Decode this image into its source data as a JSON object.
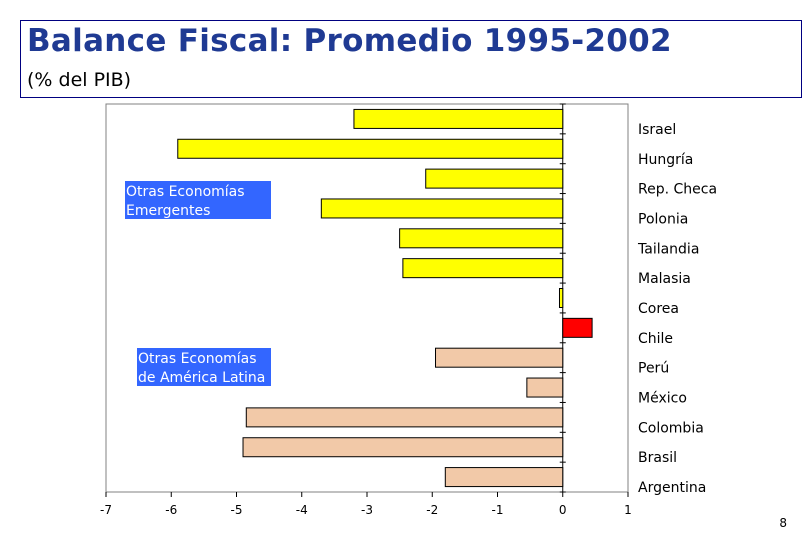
{
  "header": {
    "title": "Balance Fiscal: Promedio 1995-2002",
    "subtitle": "(% del PIB)"
  },
  "page_number": "8",
  "colors": {
    "emerging": "#ffff00",
    "latam": "#f2c9a8",
    "chile": "#ff0000",
    "group_box": "#3366ff",
    "title": "#1f3a93"
  },
  "chart_data": {
    "type": "bar",
    "orientation": "horizontal",
    "title": "Balance Fiscal: Promedio 1995-2002",
    "subtitle": "(% del PIB)",
    "xlabel": "",
    "ylabel": "",
    "xlim": [
      -7,
      1
    ],
    "xticks": [
      -7,
      -6,
      -5,
      -4,
      -3,
      -2,
      -1,
      0,
      1
    ],
    "grid": false,
    "legend": null,
    "categories": [
      "Israel",
      "Hungría",
      "Rep. Checa",
      "Polonia",
      "Tailandia",
      "Malasia",
      "Corea",
      "Chile",
      "Perú",
      "México",
      "Colombia",
      "Brasil",
      "Argentina"
    ],
    "values": [
      -3.2,
      -5.9,
      -2.1,
      -3.7,
      -2.5,
      -2.45,
      -0.05,
      0.45,
      -1.95,
      -0.55,
      -4.85,
      -4.9,
      -1.8
    ],
    "groups": [
      "emerging",
      "emerging",
      "emerging",
      "emerging",
      "emerging",
      "emerging",
      "emerging",
      "chile",
      "latam",
      "latam",
      "latam",
      "latam",
      "latam"
    ],
    "annotations": [
      {
        "id": "emerging",
        "lines": [
          "Otras Economías",
          "Emergentes"
        ]
      },
      {
        "id": "latam",
        "lines": [
          "Otras Economías",
          "de América Latina"
        ]
      }
    ]
  }
}
